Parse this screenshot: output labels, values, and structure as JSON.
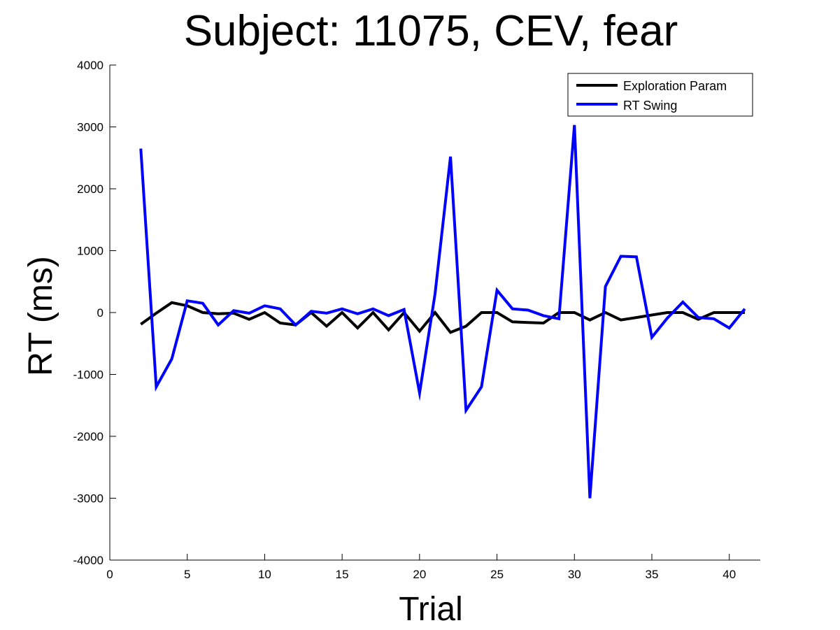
{
  "chart_data": {
    "type": "line",
    "title": "Subject: 11075, CEV, fear",
    "xlabel": "Trial",
    "ylabel": "RT (ms)",
    "xlim": [
      0,
      42
    ],
    "ylim": [
      -4000,
      4000
    ],
    "xticks": [
      0,
      5,
      10,
      15,
      20,
      25,
      30,
      35,
      40
    ],
    "yticks": [
      -4000,
      -3000,
      -2000,
      -1000,
      0,
      1000,
      2000,
      3000,
      4000
    ],
    "grid": false,
    "legend_position": "top-right",
    "x": [
      2,
      3,
      4,
      5,
      6,
      7,
      8,
      9,
      10,
      11,
      12,
      13,
      14,
      15,
      16,
      17,
      18,
      19,
      20,
      21,
      22,
      23,
      24,
      25,
      26,
      27,
      28,
      29,
      30,
      31,
      32,
      33,
      34,
      35,
      36,
      37,
      38,
      39,
      40,
      41
    ],
    "series": [
      {
        "name": "Exploration Param",
        "color": "#000000",
        "values": [
          -190,
          -10,
          160,
          110,
          0,
          -20,
          -10,
          -110,
          0,
          -170,
          -200,
          0,
          -220,
          0,
          -250,
          0,
          -280,
          0,
          -300,
          0,
          -320,
          -220,
          0,
          0,
          -150,
          -160,
          -170,
          0,
          0,
          -120,
          0,
          -120,
          -80,
          -40,
          0,
          0,
          -110,
          0,
          0,
          0
        ]
      },
      {
        "name": "RT Swing",
        "color": "#0000ff",
        "values": [
          2650,
          -1200,
          -750,
          190,
          150,
          -200,
          30,
          -10,
          110,
          60,
          -200,
          20,
          -10,
          60,
          -20,
          60,
          -50,
          50,
          -1300,
          300,
          2520,
          -1580,
          -1200,
          360,
          60,
          40,
          -50,
          -100,
          3030,
          -3000,
          420,
          910,
          900,
          -400,
          -90,
          170,
          -80,
          -100,
          -250,
          60
        ]
      }
    ]
  }
}
